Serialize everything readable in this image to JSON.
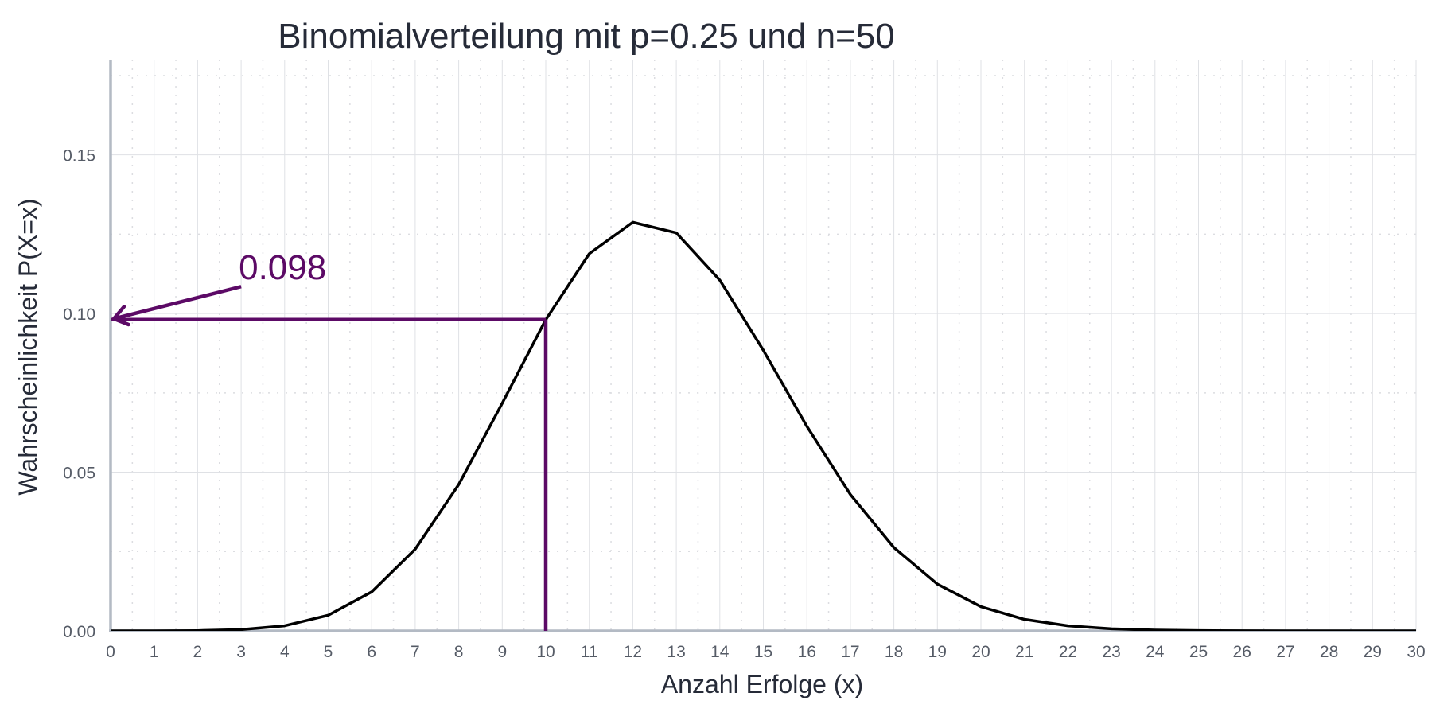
{
  "chart_data": {
    "type": "line",
    "title": "Binomialverteilung mit p=0.25 und n=50",
    "xlabel": "Anzahl Erfolge (x)",
    "ylabel": "Wahrscheinlichkeit P(X=x)",
    "xlim": [
      0,
      30
    ],
    "ylim": [
      0,
      0.18
    ],
    "x_ticks": [
      0,
      1,
      2,
      3,
      4,
      5,
      6,
      7,
      8,
      9,
      10,
      11,
      12,
      13,
      14,
      15,
      16,
      17,
      18,
      19,
      20,
      21,
      22,
      23,
      24,
      25,
      26,
      27,
      28,
      29,
      30
    ],
    "x_tick_labels": [
      "0",
      "1",
      "2",
      "3",
      "4",
      "5",
      "6",
      "7",
      "8",
      "9",
      "10",
      "11",
      "12",
      "13",
      "14",
      "15",
      "16",
      "17",
      "18",
      "19",
      "20",
      "21",
      "22",
      "23",
      "24",
      "25",
      "26",
      "27",
      "28",
      "29",
      "30"
    ],
    "y_ticks": [
      0,
      0.05,
      0.1,
      0.15
    ],
    "y_tick_labels": [
      "0.00",
      "0.05",
      "0.10",
      "0.15"
    ],
    "grid": true,
    "series": [
      {
        "x": [
          0,
          1,
          2,
          3,
          4,
          5,
          6,
          7,
          8,
          9,
          10,
          11,
          12,
          13,
          14,
          15,
          16,
          17,
          18,
          19,
          20,
          21,
          22,
          23,
          24,
          25,
          26,
          27,
          28,
          29,
          30
        ],
        "values": [
          6e-07,
          9.4e-06,
          7.68e-05,
          0.0004096,
          0.0016044,
          0.0049202,
          0.0122938,
          0.0257565,
          0.0461254,
          0.0717506,
          0.0980592,
          0.1188597,
          0.1287647,
          0.1254375,
          0.1105236,
          0.0884189,
          0.0644721,
          0.0429814,
          0.0262664,
          0.0147486,
          0.0076202,
          0.0036287,
          0.0015946,
          0.000647,
          0.0002426,
          8.41e-05,
          2.7e-05,
          8e-06,
          2.2e-06,
          6e-07,
          1e-07
        ],
        "color": "#000000"
      }
    ],
    "annotation": {
      "text": "0.098",
      "x": 10,
      "y": 0.0981,
      "text_x": 3,
      "text_y": 0.112,
      "color": "#5c0a66"
    }
  }
}
